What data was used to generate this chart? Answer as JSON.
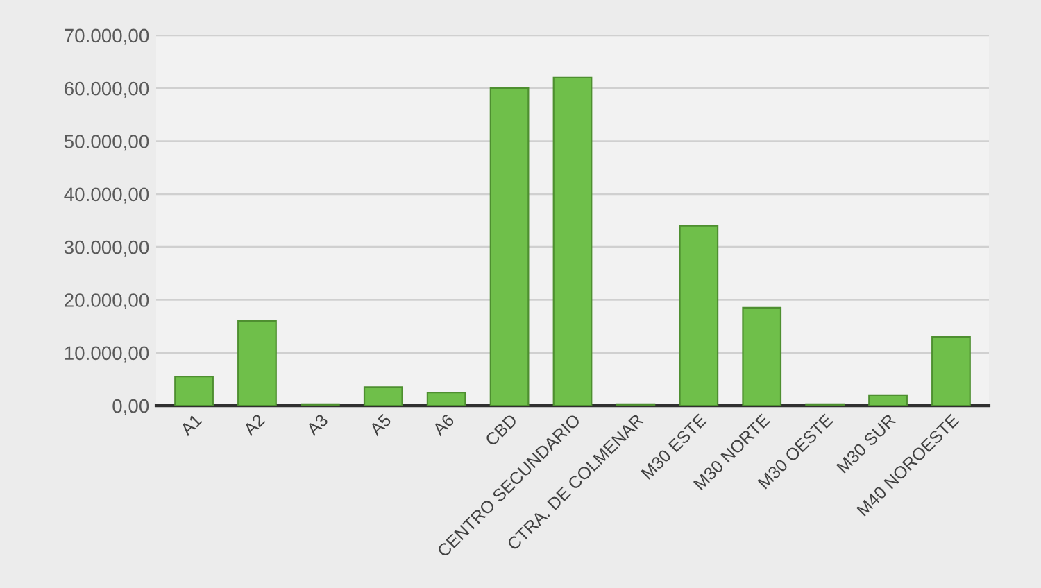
{
  "chart_data": {
    "type": "bar",
    "categories": [
      "A1",
      "A2",
      "A3",
      "A5",
      "A6",
      "CBD",
      "CENTRO SECUNDARIO",
      "CTRA. DE COLMENAR",
      "M30 ESTE",
      "M30 NORTE",
      "M30 OESTE",
      "M30 SUR",
      "M40 NOROESTE"
    ],
    "values": [
      5500,
      16000,
      300,
      3500,
      2500,
      60000,
      62000,
      300,
      34000,
      18500,
      300,
      2000,
      13000
    ],
    "color": "#6fbf4a",
    "ylim": [
      0,
      70000
    ],
    "yticks": [
      {
        "value": 0,
        "label": "0,00"
      },
      {
        "value": 10000,
        "label": "10.000,00"
      },
      {
        "value": 20000,
        "label": "20.000,00"
      },
      {
        "value": 30000,
        "label": "30.000,00"
      },
      {
        "value": 40000,
        "label": "40.000,00"
      },
      {
        "value": 50000,
        "label": "50.000,00"
      },
      {
        "value": 60000,
        "label": "60.000,00"
      },
      {
        "value": 70000,
        "label": "70.000,00"
      }
    ],
    "grid": "y"
  }
}
